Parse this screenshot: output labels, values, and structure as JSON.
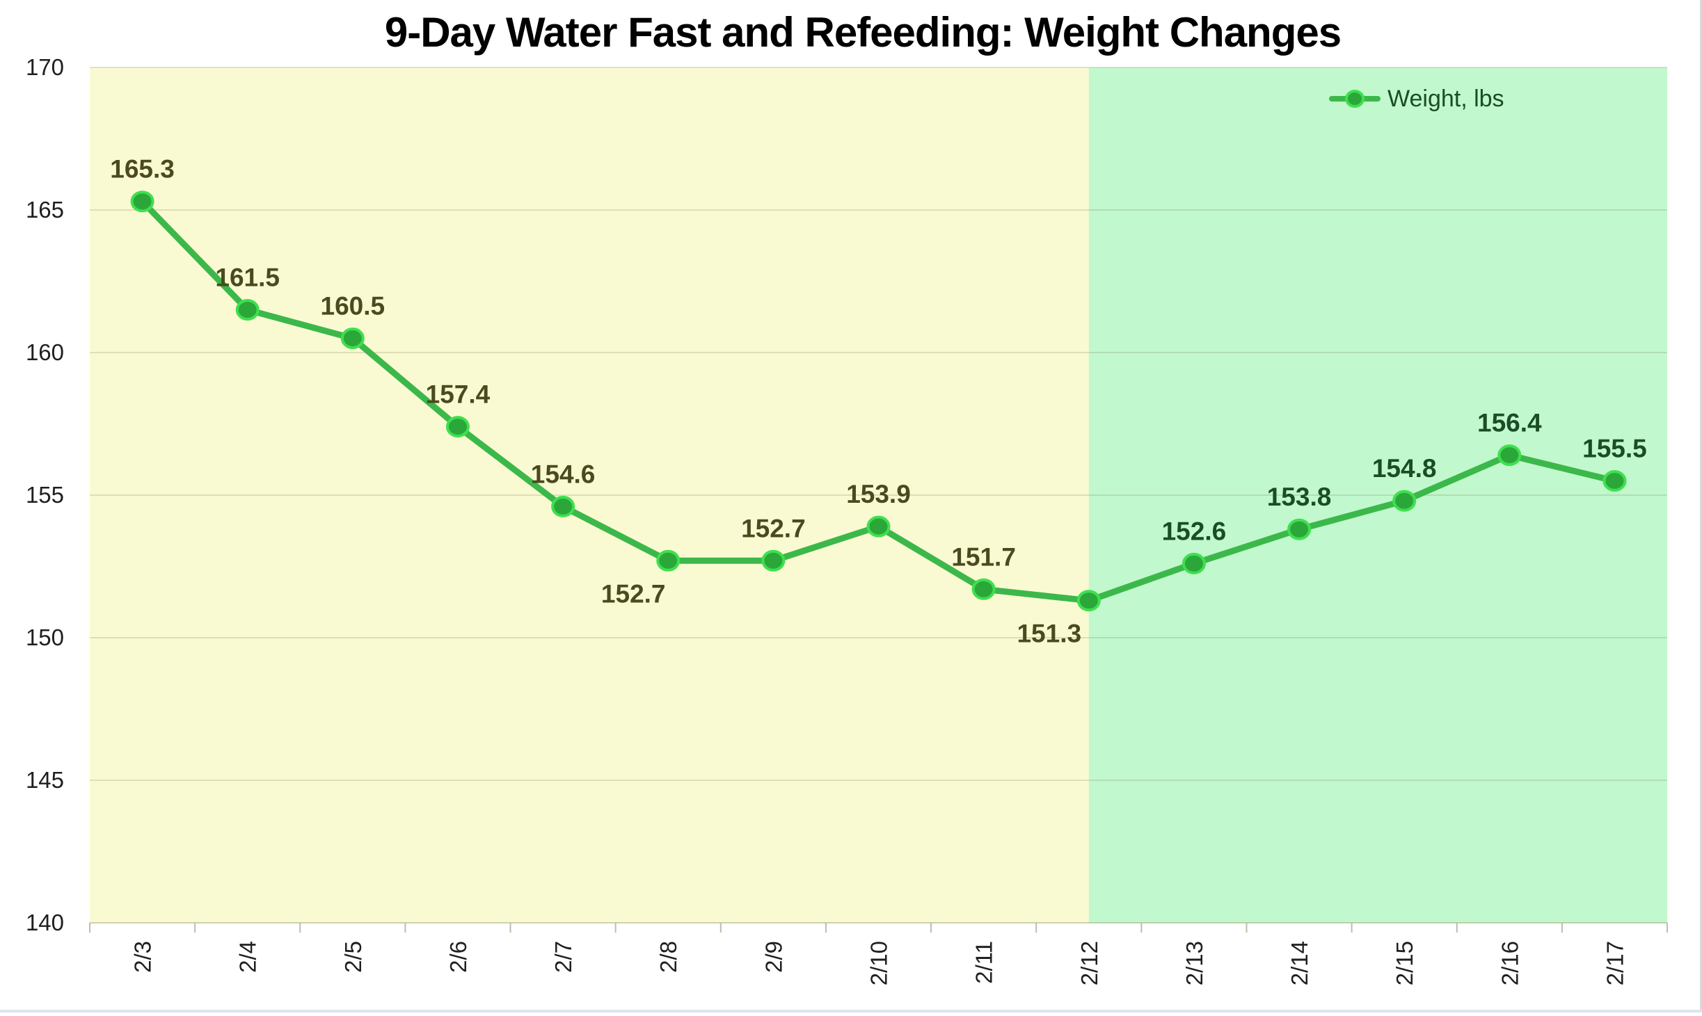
{
  "chart_data": {
    "type": "line",
    "title": "9-Day Water Fast and Refeeding: Weight Changes",
    "legend_label": "Weight, lbs",
    "legend_position": "top-right",
    "categories": [
      "2/3",
      "2/4",
      "2/5",
      "2/6",
      "2/7",
      "2/8",
      "2/9",
      "2/10",
      "2/11",
      "2/12",
      "2/13",
      "2/14",
      "2/15",
      "2/16",
      "2/17"
    ],
    "series": [
      {
        "name": "Weight, lbs",
        "values": [
          165.3,
          161.5,
          160.5,
          157.4,
          154.6,
          152.7,
          152.7,
          153.9,
          151.7,
          151.3,
          152.6,
          153.8,
          154.8,
          156.4,
          155.5
        ]
      }
    ],
    "data_label_decimals": 1,
    "label_sides": [
      "above",
      "above",
      "above",
      "above",
      "above",
      "below",
      "above",
      "above",
      "above",
      "below",
      "above",
      "above",
      "above",
      "above",
      "above"
    ],
    "label_dx": [
      0,
      0,
      0,
      0,
      0,
      -50,
      0,
      0,
      0,
      -57,
      0,
      0,
      0,
      0,
      0
    ],
    "ylim": [
      140,
      170
    ],
    "ytick_step": 5,
    "ytick_labels": [
      "140",
      "145",
      "150",
      "155",
      "160",
      "165",
      "170"
    ],
    "grid": "horizontal",
    "phases": [
      {
        "name": "fast",
        "from_category": "2/3",
        "to_category": "2/12",
        "bg": "#FAFAD2"
      },
      {
        "name": "refeed",
        "from_category": "2/12",
        "to_category": "2/17",
        "bg": "#C2F8CE"
      }
    ],
    "phase_boundary_category": "2/12",
    "colors": {
      "line": "#3CB84B",
      "marker_fill": "#2BA73A",
      "marker_ring": "#3EE04E",
      "label_fast": "#4B4A1E",
      "label_refeed": "#1A4D26",
      "legend_text": "#1A4D26",
      "axis_text": "#1F1F1F",
      "title": "#000000",
      "grid": "#64643C",
      "axis_line": "#8C8C64",
      "tick": "#BDBDA8"
    }
  }
}
